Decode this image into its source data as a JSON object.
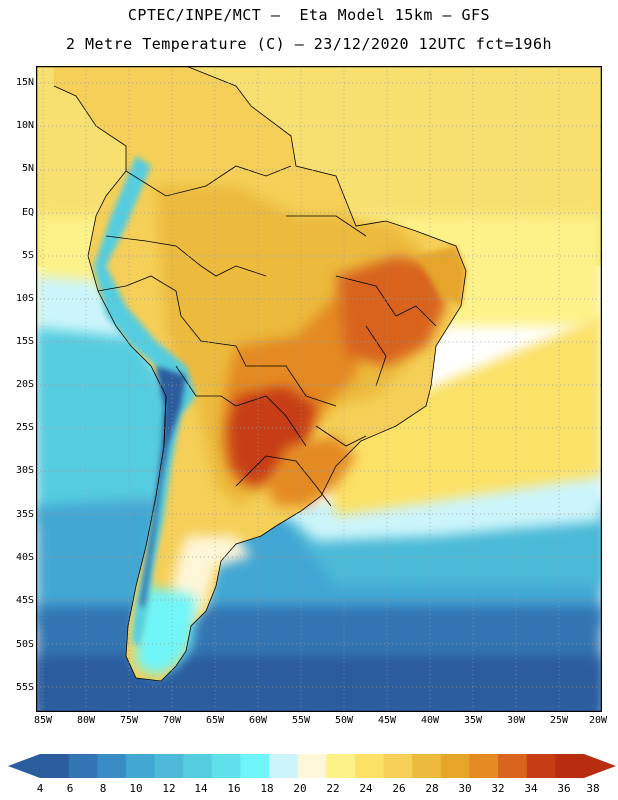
{
  "header": {
    "title_line1": "CPTEC/INPE/MCT –  Eta Model 15km – GFS",
    "title_line2": "2 Metre Temperature (C) – 23/12/2020 12UTC fct=196h"
  },
  "map": {
    "variable": "2 Metre Temperature",
    "units": "C",
    "latitude_labels": [
      "15N",
      "10N",
      "5N",
      "EQ",
      "5S",
      "10S",
      "15S",
      "20S",
      "25S",
      "30S",
      "35S",
      "40S",
      "45S",
      "50S",
      "55S"
    ],
    "longitude_labels": [
      "85W",
      "80W",
      "75W",
      "70W",
      "65W",
      "60W",
      "55W",
      "50W",
      "45W",
      "40W",
      "35W",
      "30W",
      "25W",
      "20W"
    ]
  },
  "legend": {
    "values": [
      "4",
      "6",
      "8",
      "10",
      "12",
      "14",
      "16",
      "18",
      "20",
      "22",
      "24",
      "26",
      "28",
      "30",
      "32",
      "34",
      "36",
      "38"
    ],
    "colors": [
      "#2a5c9e",
      "#3374b2",
      "#3a8dc4",
      "#43a6d3",
      "#4cbad8",
      "#55cde0",
      "#5fe0ea",
      "#6ff5f8",
      "#ccf5fb",
      "#fef6d8",
      "#fdf289",
      "#fbe166",
      "#f5cf57",
      "#ecba3d",
      "#e6a429",
      "#e48a22",
      "#d9641d",
      "#c63d14",
      "#b82d10"
    ],
    "low_color": "#2a5c9e",
    "high_color": "#b82d10"
  }
}
